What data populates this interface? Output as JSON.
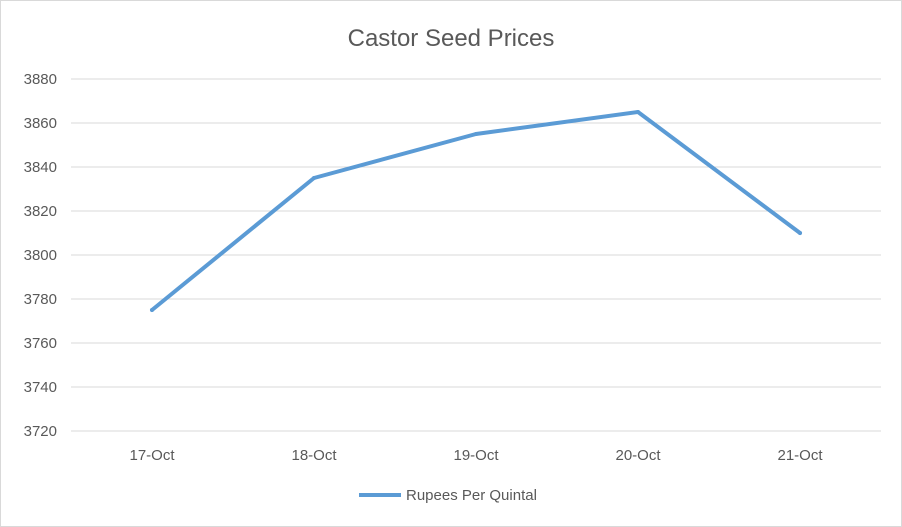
{
  "chart_data": {
    "type": "line",
    "title": "Castor Seed Prices",
    "xlabel": "",
    "ylabel": "",
    "categories": [
      "17-Oct",
      "18-Oct",
      "19-Oct",
      "20-Oct",
      "21-Oct"
    ],
    "series": [
      {
        "name": "Rupees Per Quintal",
        "values": [
          3775,
          3835,
          3855,
          3865,
          3810
        ],
        "color": "#5b9bd5"
      }
    ],
    "ylim": [
      3720,
      3880
    ],
    "yticks": [
      3720,
      3740,
      3760,
      3780,
      3800,
      3820,
      3840,
      3860,
      3880
    ],
    "grid": true,
    "legend_position": "bottom"
  }
}
